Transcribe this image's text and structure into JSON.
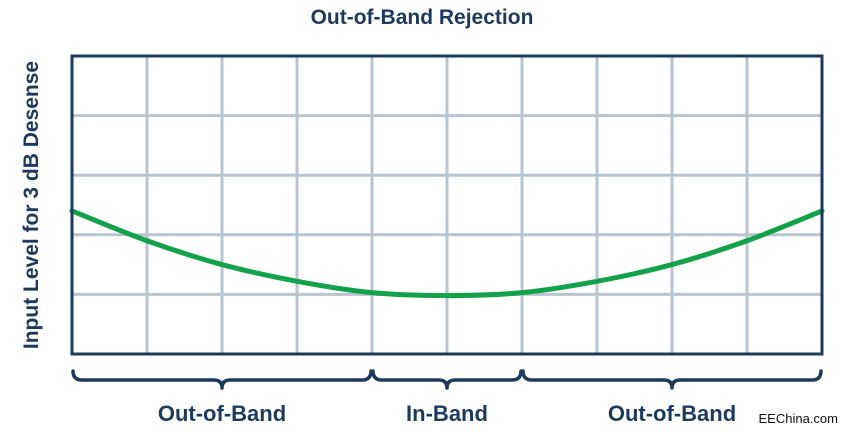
{
  "chart_data": {
    "type": "line",
    "title": "Out-of-Band Rejection",
    "xlabel": "",
    "ylabel": "Input Level for 3 dB Desense",
    "x_ticks": [],
    "y_ticks": [],
    "grid": true,
    "xlim": [
      0,
      10
    ],
    "ylim": [
      0,
      5
    ],
    "series": [
      {
        "color": "#13a24a",
        "points": [
          [
            0,
            2.4
          ],
          [
            1,
            1.9
          ],
          [
            2,
            1.5
          ],
          [
            3,
            1.22
          ],
          [
            4,
            1.03
          ],
          [
            5,
            0.98
          ],
          [
            6,
            1.03
          ],
          [
            7,
            1.22
          ],
          [
            8,
            1.5
          ],
          [
            9,
            1.9
          ],
          [
            10,
            2.4
          ]
        ]
      }
    ],
    "regions": [
      {
        "label": "Out-of-Band",
        "from": 0,
        "to": 4
      },
      {
        "label": "In-Band",
        "from": 4,
        "to": 6
      },
      {
        "label": "Out-of-Band",
        "from": 6,
        "to": 10
      }
    ]
  },
  "colors": {
    "frame": "#1c3a5e",
    "grid": "#b8c4cf",
    "curve": "#13a24a",
    "text": "#1c3a5e"
  },
  "watermark": "EEChina.com"
}
